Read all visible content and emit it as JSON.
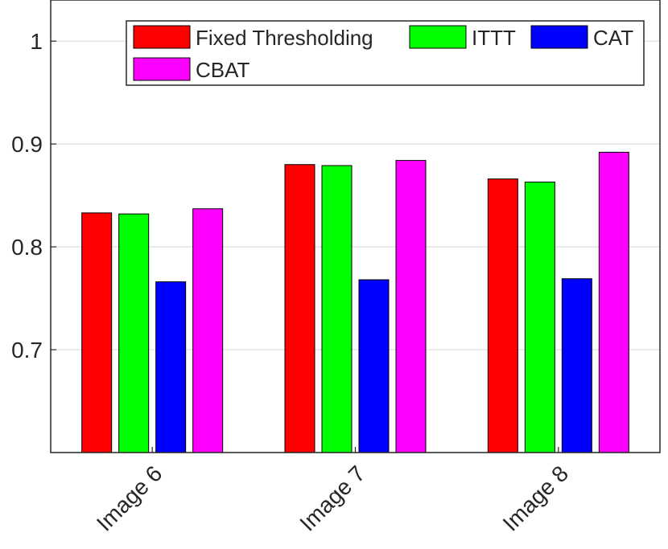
{
  "chart_data": {
    "type": "bar",
    "categories": [
      "Image 6",
      "Image 7",
      "Image 8"
    ],
    "series": [
      {
        "name": "Fixed Thresholding",
        "color": "#ff0000",
        "values": [
          0.833,
          0.88,
          0.866
        ]
      },
      {
        "name": "ITTT",
        "color": "#00ff00",
        "values": [
          0.832,
          0.879,
          0.863
        ]
      },
      {
        "name": "CAT",
        "color": "#0000ff",
        "values": [
          0.766,
          0.768,
          0.769
        ]
      },
      {
        "name": "CBAT",
        "color": "#ff00ff",
        "values": [
          0.837,
          0.884,
          0.892
        ]
      }
    ],
    "ylim": [
      0.6,
      1.04
    ],
    "yticks": [
      "0.7",
      "0.8",
      "0.9",
      "1"
    ],
    "grid": true,
    "legend_position": "top-right",
    "xtick_rotation": "45 degrees"
  }
}
